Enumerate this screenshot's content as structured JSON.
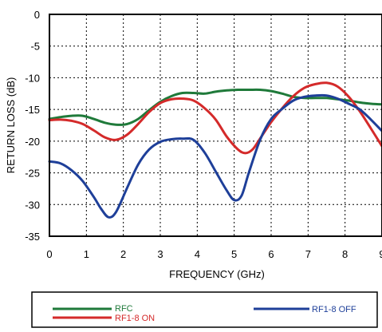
{
  "chart_data": {
    "type": "line",
    "title": "",
    "xlabel": "FREQUENCY (GHz)",
    "ylabel": "RETURN LOSS (dB)",
    "xlim": [
      0,
      9
    ],
    "ylim": [
      -35,
      0
    ],
    "xticks": [
      "0",
      "1",
      "2",
      "3",
      "4",
      "5",
      "6",
      "7",
      "8",
      "9"
    ],
    "yticks": [
      "0",
      "-5",
      "-10",
      "-15",
      "-20",
      "-25",
      "-30",
      "-35"
    ],
    "grid": true,
    "legend_position": "bottom",
    "series": [
      {
        "name": "RFC",
        "color": "#1f7a3a",
        "x": [
          0,
          0.3,
          0.6,
          0.9,
          1.2,
          1.5,
          1.8,
          2.1,
          2.4,
          2.7,
          3.0,
          3.3,
          3.6,
          3.9,
          4.2,
          4.5,
          4.8,
          5.1,
          5.4,
          5.7,
          6.0,
          6.3,
          6.6,
          6.9,
          7.2,
          7.5,
          7.8,
          8.1,
          8.4,
          8.7,
          9.0
        ],
        "values": [
          -16.5,
          -16.2,
          -16.0,
          -16.0,
          -16.5,
          -17.1,
          -17.4,
          -17.3,
          -16.5,
          -15.1,
          -13.8,
          -12.9,
          -12.4,
          -12.4,
          -12.5,
          -12.2,
          -12.0,
          -11.9,
          -11.9,
          -11.9,
          -12.1,
          -12.5,
          -13.0,
          -13.2,
          -13.2,
          -13.2,
          -13.4,
          -13.6,
          -13.9,
          -14.1,
          -14.2
        ]
      },
      {
        "name": "RF1-8 ON",
        "color": "#d42a2a",
        "x": [
          0,
          0.3,
          0.6,
          0.9,
          1.2,
          1.5,
          1.8,
          2.1,
          2.4,
          2.7,
          3.0,
          3.3,
          3.6,
          3.9,
          4.2,
          4.5,
          4.8,
          5.1,
          5.3,
          5.5,
          5.7,
          6.0,
          6.3,
          6.6,
          6.9,
          7.2,
          7.5,
          7.8,
          8.1,
          8.4,
          8.7,
          9.0
        ],
        "values": [
          -16.7,
          -16.6,
          -16.8,
          -17.3,
          -18.3,
          -19.4,
          -19.8,
          -19.0,
          -17.3,
          -15.4,
          -14.0,
          -13.4,
          -13.3,
          -13.6,
          -14.8,
          -16.6,
          -19.3,
          -21.3,
          -21.9,
          -21.3,
          -19.6,
          -17.0,
          -14.8,
          -12.9,
          -11.6,
          -11.0,
          -10.8,
          -11.4,
          -13.0,
          -15.3,
          -18.0,
          -20.8
        ]
      },
      {
        "name": "RF1-8 OFF",
        "color": "#1e3f99",
        "x": [
          0,
          0.3,
          0.6,
          0.9,
          1.2,
          1.4,
          1.6,
          1.8,
          2.1,
          2.4,
          2.7,
          3.0,
          3.3,
          3.6,
          3.9,
          4.2,
          4.5,
          4.8,
          5.0,
          5.2,
          5.4,
          5.7,
          6.0,
          6.3,
          6.6,
          6.9,
          7.2,
          7.5,
          7.8,
          8.1,
          8.4,
          8.7,
          9.0
        ],
        "values": [
          -23.2,
          -23.5,
          -24.6,
          -26.3,
          -28.8,
          -30.7,
          -32.0,
          -31.2,
          -27.4,
          -23.7,
          -21.3,
          -20.1,
          -19.7,
          -19.6,
          -19.8,
          -21.8,
          -24.8,
          -27.8,
          -29.3,
          -28.6,
          -24.9,
          -19.8,
          -16.5,
          -14.9,
          -13.6,
          -13.0,
          -12.8,
          -12.8,
          -13.3,
          -14.1,
          -15.0,
          -16.6,
          -18.4
        ]
      }
    ]
  }
}
